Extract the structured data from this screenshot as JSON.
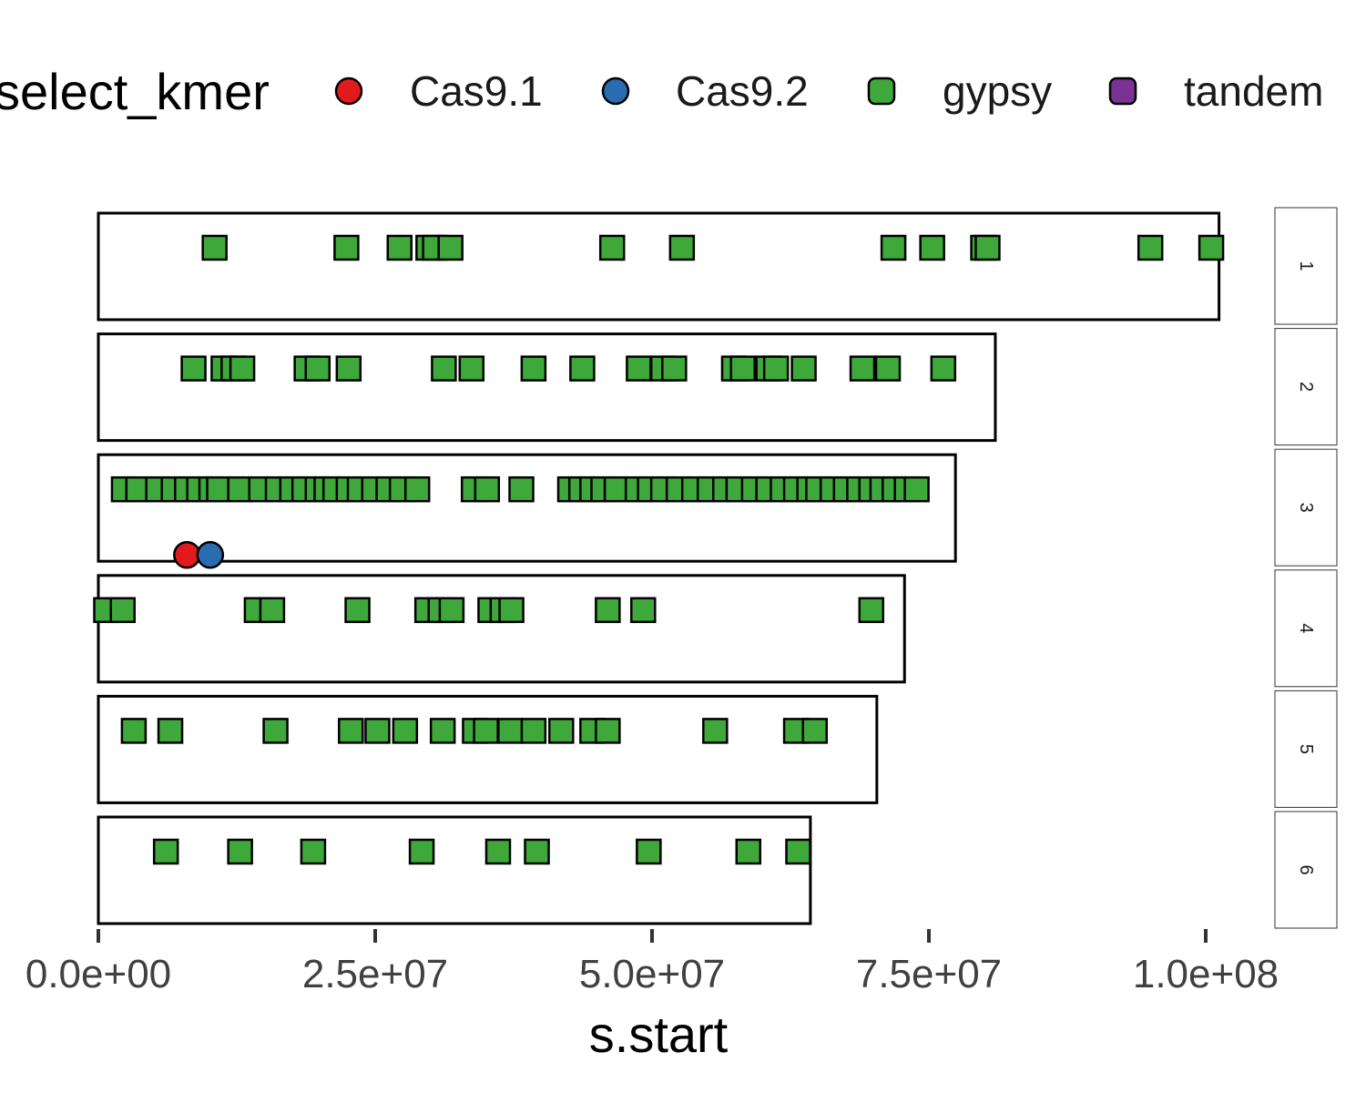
{
  "chart_data": {
    "type": "scatter",
    "xlabel": "s.start",
    "ylabel": "",
    "xlim": [
      0,
      100000000
    ],
    "x_ticks": [
      0,
      25000000,
      50000000,
      75000000,
      100000000
    ],
    "x_tick_labels": [
      "0.0e+00",
      "2.5e+07",
      "5.0e+07",
      "7.5e+07",
      "1.0e+08"
    ],
    "grid": false,
    "legend": {
      "title": "select_kmer",
      "position": "top",
      "entries": [
        {
          "label": "Cas9.1",
          "color": "#e31a1c",
          "shape": "circle"
        },
        {
          "label": "Cas9.2",
          "color": "#2b6cb0",
          "shape": "circle"
        },
        {
          "label": "gypsy",
          "color": "#3fa83a",
          "shape": "square"
        },
        {
          "label": "tandem",
          "color": "#7b3294",
          "shape": "square"
        }
      ]
    },
    "panels": [
      {
        "label": "1",
        "length": 101200000,
        "series": [
          {
            "name": "gypsy",
            "x": [
              10500000,
              22400000,
              27200000,
              29800000,
              30400000,
              31800000,
              46400000,
              52700000,
              71800000,
              75300000,
              79900000,
              80300000,
              95000000,
              100500000
            ]
          }
        ]
      },
      {
        "label": "2",
        "length": 81000000,
        "series": [
          {
            "name": "gypsy",
            "x": [
              8600000,
              11300000,
              12200000,
              13000000,
              18800000,
              19800000,
              22600000,
              31200000,
              33700000,
              39300000,
              43700000,
              48800000,
              51000000,
              52000000,
              57400000,
              58200000,
              60500000,
              61200000,
              63700000,
              69000000,
              71300000,
              76300000
            ]
          }
        ]
      },
      {
        "label": "3",
        "length": 77400000,
        "series": [
          {
            "name": "gypsy",
            "x": [
              2300000,
              3600000,
              5400000,
              6800000,
              8000000,
              9100000,
              10200000,
              10900000,
              12800000,
              14700000,
              16200000,
              17500000,
              18600000,
              19800000,
              20600000,
              21400000,
              22600000,
              23600000,
              24900000,
              26200000,
              27400000,
              28800000,
              33900000,
              35100000,
              38200000,
              42600000,
              43600000,
              44600000,
              45600000,
              46800000,
              48700000,
              49800000,
              51000000,
              52400000,
              53800000,
              55200000,
              56600000,
              57800000,
              59200000,
              60500000,
              61800000,
              63000000,
              64200000,
              65000000,
              66300000,
              67500000,
              68700000,
              69800000,
              70800000,
              71900000,
              73000000,
              73900000
            ],
            "color": "#3fa83a"
          },
          {
            "name": "Cas9.1",
            "x": [
              8000000
            ]
          },
          {
            "name": "Cas9.2",
            "x": [
              10100000
            ]
          }
        ]
      },
      {
        "label": "4",
        "length": 72800000,
        "series": [
          {
            "name": "gypsy",
            "x": [
              700000,
              2200000,
              14300000,
              15700000,
              23400000,
              29700000,
              30900000,
              31900000,
              35400000,
              36500000,
              37300000,
              46000000,
              49200000,
              69800000
            ]
          }
        ]
      },
      {
        "label": "5",
        "length": 70300000,
        "series": [
          {
            "name": "gypsy",
            "x": [
              3200000,
              6500000,
              16000000,
              22800000,
              25200000,
              27700000,
              31100000,
              34000000,
              35000000,
              37200000,
              39300000,
              41800000,
              44600000,
              46000000,
              55700000,
              63000000,
              64700000
            ]
          }
        ]
      },
      {
        "label": "6",
        "length": 64300000,
        "series": [
          {
            "name": "gypsy",
            "x": [
              6100000,
              12800000,
              19400000,
              29200000,
              36100000,
              39600000,
              49700000,
              58700000,
              63200000
            ]
          }
        ]
      }
    ]
  }
}
